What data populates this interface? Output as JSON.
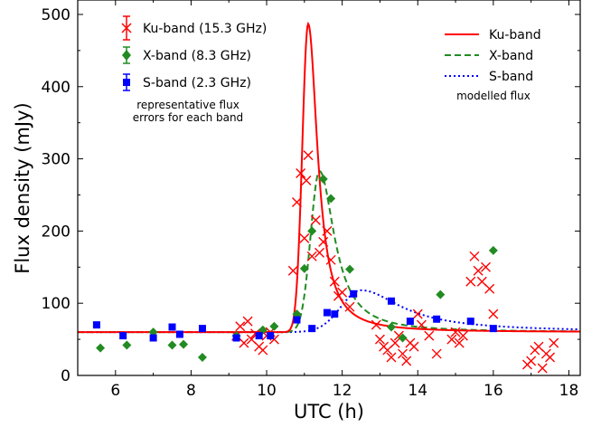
{
  "chart_data": {
    "type": "scatter",
    "xlabel": "UTC (h)",
    "ylabel": "Flux density (mJy)",
    "xlim": [
      5.0,
      18.3
    ],
    "ylim": [
      0,
      520
    ],
    "xticks": [
      6,
      8,
      10,
      12,
      14,
      16,
      18
    ],
    "yticks": [
      0,
      100,
      200,
      300,
      400,
      500
    ],
    "legend_observed": {
      "placement": "top-left",
      "entries": [
        {
          "label": "Ku-band (15.3 GHz)",
          "color": "#ff0000",
          "marker": "x"
        },
        {
          "label": "X-band (8.3 GHz)",
          "color": "#228b22",
          "marker": "diamond"
        },
        {
          "label": "S-band (2.3 GHz)",
          "color": "#0000ff",
          "marker": "square"
        }
      ],
      "note_lines": [
        "representative flux",
        "errors for each band"
      ]
    },
    "legend_model": {
      "placement": "top-right",
      "entries": [
        {
          "label": "Ku-band",
          "color": "#ff0000",
          "style": "solid"
        },
        {
          "label": "X-band",
          "color": "#228b22",
          "style": "dashed"
        },
        {
          "label": "S-band",
          "color": "#0000ff",
          "style": "dotted"
        }
      ],
      "note": "modelled flux"
    },
    "observed": {
      "ku": {
        "x": [
          9.2,
          9.3,
          9.4,
          9.5,
          9.6,
          9.7,
          9.8,
          9.9,
          10.0,
          10.1,
          10.2,
          10.7,
          10.8,
          10.9,
          11.0,
          11.05,
          11.1,
          11.2,
          11.3,
          11.4,
          11.5,
          11.6,
          11.7,
          11.8,
          11.9,
          12.0,
          12.2,
          12.9,
          13.0,
          13.1,
          13.2,
          13.3,
          13.4,
          13.5,
          13.6,
          13.7,
          13.8,
          13.9,
          14.0,
          14.1,
          14.3,
          14.5,
          14.9,
          15.0,
          15.1,
          15.2,
          15.4,
          15.5,
          15.6,
          15.7,
          15.8,
          15.9,
          16.0,
          16.9,
          17.0,
          17.1,
          17.2,
          17.3,
          17.4,
          17.5,
          17.6
        ],
        "y": [
          55,
          68,
          45,
          75,
          50,
          58,
          40,
          35,
          55,
          60,
          50,
          145,
          240,
          280,
          190,
          270,
          305,
          165,
          215,
          170,
          185,
          200,
          160,
          130,
          110,
          115,
          95,
          70,
          50,
          40,
          35,
          25,
          45,
          55,
          30,
          20,
          45,
          40,
          85,
          70,
          55,
          30,
          50,
          60,
          45,
          55,
          130,
          165,
          145,
          130,
          150,
          120,
          85,
          15,
          20,
          35,
          40,
          10,
          30,
          25,
          45
        ]
      },
      "x": {
        "x": [
          5.6,
          6.3,
          7.0,
          7.5,
          7.8,
          8.3,
          9.2,
          9.9,
          10.2,
          10.8,
          11.0,
          11.2,
          11.5,
          11.7,
          12.2,
          13.3,
          13.6,
          14.6,
          16.0
        ],
        "y": [
          38,
          42,
          60,
          42,
          43,
          25,
          55,
          63,
          68,
          85,
          148,
          200,
          272,
          245,
          147,
          67,
          52,
          112,
          173
        ]
      },
      "s": {
        "x": [
          5.5,
          6.2,
          7.0,
          7.5,
          7.7,
          8.3,
          9.2,
          9.8,
          10.1,
          10.8,
          11.2,
          11.6,
          11.8,
          12.3,
          13.3,
          13.8,
          14.5,
          15.4,
          16.0
        ],
        "y": [
          70,
          55,
          52,
          67,
          57,
          65,
          52,
          55,
          55,
          77,
          65,
          87,
          85,
          113,
          103,
          75,
          78,
          75,
          65
        ]
      }
    },
    "model": {
      "baseline": 60,
      "ku": {
        "peak_x": 11.1,
        "peak_y": 487
      },
      "x": {
        "peak_x": 11.4,
        "peak_y": 283
      },
      "s": {
        "peak_x": 12.5,
        "peak_y": 118
      }
    },
    "colors": {
      "ku": "#ff0000",
      "x": "#228b22",
      "s": "#0000ff"
    }
  }
}
